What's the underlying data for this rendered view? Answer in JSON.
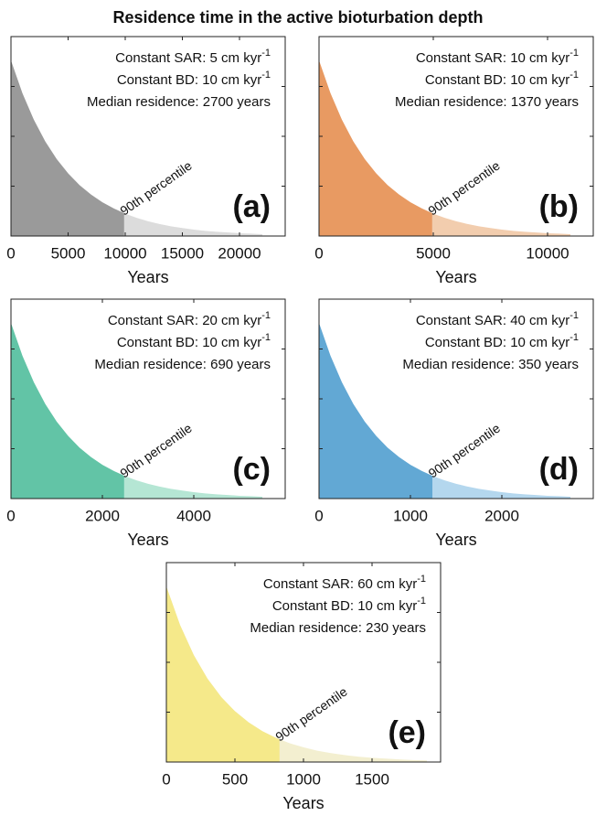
{
  "title": "Residence time in the active bioturbation depth",
  "chart_data": [
    {
      "type": "area",
      "panel_label": "(a)",
      "xlabel": "Years",
      "notes": [
        {
          "text": "Constant SAR: 5 cm kyr",
          "sup": "-1"
        },
        {
          "text": "Constant BD: 10 cm kyr",
          "sup": "-1"
        },
        {
          "text": "Median residence: 2700 years"
        }
      ],
      "annotation": "90th percentile",
      "percentile_90_x": 9900,
      "color": "#9a9a9a",
      "tail_color": "#dcdcdc",
      "x": [
        0,
        1000,
        2000,
        3000,
        4000,
        5000,
        6000,
        7000,
        8000,
        9000,
        10000,
        11000,
        12000,
        13000,
        14000,
        15000,
        16000,
        17000,
        18000,
        19000,
        20000,
        21000,
        22000
      ],
      "values": [
        0.88,
        0.716,
        0.583,
        0.474,
        0.386,
        0.314,
        0.255,
        0.208,
        0.169,
        0.138,
        0.112,
        0.091,
        0.074,
        0.06,
        0.049,
        0.04,
        0.032,
        0.026,
        0.021,
        0.018,
        0.014,
        0.012,
        0.009
      ],
      "xlim": [
        0,
        24000
      ],
      "xticks": [
        0,
        5000,
        10000,
        15000,
        20000
      ],
      "ylim": [
        0,
        1
      ],
      "yticks": [
        0,
        0.25,
        0.5,
        0.75,
        1
      ]
    },
    {
      "type": "area",
      "panel_label": "(b)",
      "xlabel": "Years",
      "notes": [
        {
          "text": "Constant SAR: 10 cm kyr",
          "sup": "-1"
        },
        {
          "text": "Constant BD: 10 cm kyr",
          "sup": "-1"
        },
        {
          "text": "Median residence: 1370 years"
        }
      ],
      "annotation": "90th percentile",
      "percentile_90_x": 4950,
      "color": "#e89a62",
      "tail_color": "#f2cdae",
      "x": [
        0,
        500,
        1000,
        1500,
        2000,
        2500,
        3000,
        3500,
        4000,
        4500,
        5000,
        5500,
        6000,
        6500,
        7000,
        7500,
        8000,
        8500,
        9000,
        9500,
        10000,
        10500,
        11000
      ],
      "values": [
        0.88,
        0.716,
        0.583,
        0.474,
        0.386,
        0.314,
        0.255,
        0.208,
        0.169,
        0.138,
        0.112,
        0.091,
        0.074,
        0.06,
        0.049,
        0.04,
        0.032,
        0.026,
        0.021,
        0.018,
        0.014,
        0.012,
        0.009
      ],
      "xlim": [
        0,
        12000
      ],
      "xticks": [
        0,
        5000,
        10000
      ],
      "ylim": [
        0,
        1
      ],
      "yticks": [
        0,
        0.25,
        0.5,
        0.75,
        1
      ]
    },
    {
      "type": "area",
      "panel_label": "(c)",
      "xlabel": "Years",
      "notes": [
        {
          "text": "Constant SAR: 20 cm kyr",
          "sup": "-1"
        },
        {
          "text": "Constant BD: 10 cm kyr",
          "sup": "-1"
        },
        {
          "text": "Median residence: 690 years"
        }
      ],
      "annotation": "90th percentile",
      "percentile_90_x": 2475,
      "color": "#62c4a6",
      "tail_color": "#b5e6d4",
      "x": [
        0,
        250,
        500,
        750,
        1000,
        1250,
        1500,
        1750,
        2000,
        2250,
        2500,
        2750,
        3000,
        3250,
        3500,
        3750,
        4000,
        4250,
        4500,
        4750,
        5000,
        5250,
        5500
      ],
      "values": [
        0.88,
        0.716,
        0.583,
        0.474,
        0.386,
        0.314,
        0.255,
        0.208,
        0.169,
        0.138,
        0.112,
        0.091,
        0.074,
        0.06,
        0.049,
        0.04,
        0.032,
        0.026,
        0.021,
        0.018,
        0.014,
        0.012,
        0.009
      ],
      "xlim": [
        0,
        6000
      ],
      "xticks": [
        0,
        2000,
        4000
      ],
      "ylim": [
        0,
        1
      ],
      "yticks": [
        0,
        0.25,
        0.5,
        0.75,
        1
      ]
    },
    {
      "type": "area",
      "panel_label": "(d)",
      "xlabel": "Years",
      "notes": [
        {
          "text": "Constant SAR: 40 cm kyr",
          "sup": "-1"
        },
        {
          "text": "Constant BD: 10 cm kyr",
          "sup": "-1"
        },
        {
          "text": "Median residence: 350 years"
        }
      ],
      "annotation": "90th percentile",
      "percentile_90_x": 1240,
      "color": "#62a8d4",
      "tail_color": "#b4d7ee",
      "x": [
        0,
        125,
        250,
        375,
        500,
        625,
        750,
        875,
        1000,
        1125,
        1250,
        1375,
        1500,
        1625,
        1750,
        1875,
        2000,
        2125,
        2250,
        2375,
        2500,
        2625,
        2750
      ],
      "values": [
        0.88,
        0.716,
        0.583,
        0.474,
        0.386,
        0.314,
        0.255,
        0.208,
        0.169,
        0.138,
        0.112,
        0.091,
        0.074,
        0.06,
        0.049,
        0.04,
        0.032,
        0.026,
        0.021,
        0.018,
        0.014,
        0.012,
        0.009
      ],
      "xlim": [
        0,
        3000
      ],
      "xticks": [
        0,
        1000,
        2000
      ],
      "ylim": [
        0,
        1
      ],
      "yticks": [
        0,
        0.25,
        0.5,
        0.75,
        1
      ]
    },
    {
      "type": "area",
      "panel_label": "(e)",
      "xlabel": "Years",
      "notes": [
        {
          "text": "Constant SAR: 60 cm kyr",
          "sup": "-1"
        },
        {
          "text": "Constant BD: 10 cm kyr",
          "sup": "-1"
        },
        {
          "text": "Median residence: 230 years"
        }
      ],
      "annotation": "90th percentile",
      "percentile_90_x": 825,
      "color": "#f5e98a",
      "tail_color": "#f3efd0",
      "x": [
        0,
        100,
        200,
        300,
        400,
        500,
        600,
        700,
        800,
        900,
        1000,
        1100,
        1200,
        1300,
        1400,
        1500,
        1600,
        1700,
        1800,
        1900
      ],
      "values": [
        0.88,
        0.687,
        0.536,
        0.418,
        0.326,
        0.255,
        0.199,
        0.155,
        0.121,
        0.094,
        0.074,
        0.057,
        0.045,
        0.035,
        0.027,
        0.021,
        0.017,
        0.013,
        0.01,
        0.008
      ],
      "xlim": [
        0,
        2000
      ],
      "xticks": [
        0,
        500,
        1000,
        1500
      ],
      "ylim": [
        0,
        1
      ],
      "yticks": [
        0,
        0.25,
        0.5,
        0.75,
        1
      ]
    }
  ]
}
